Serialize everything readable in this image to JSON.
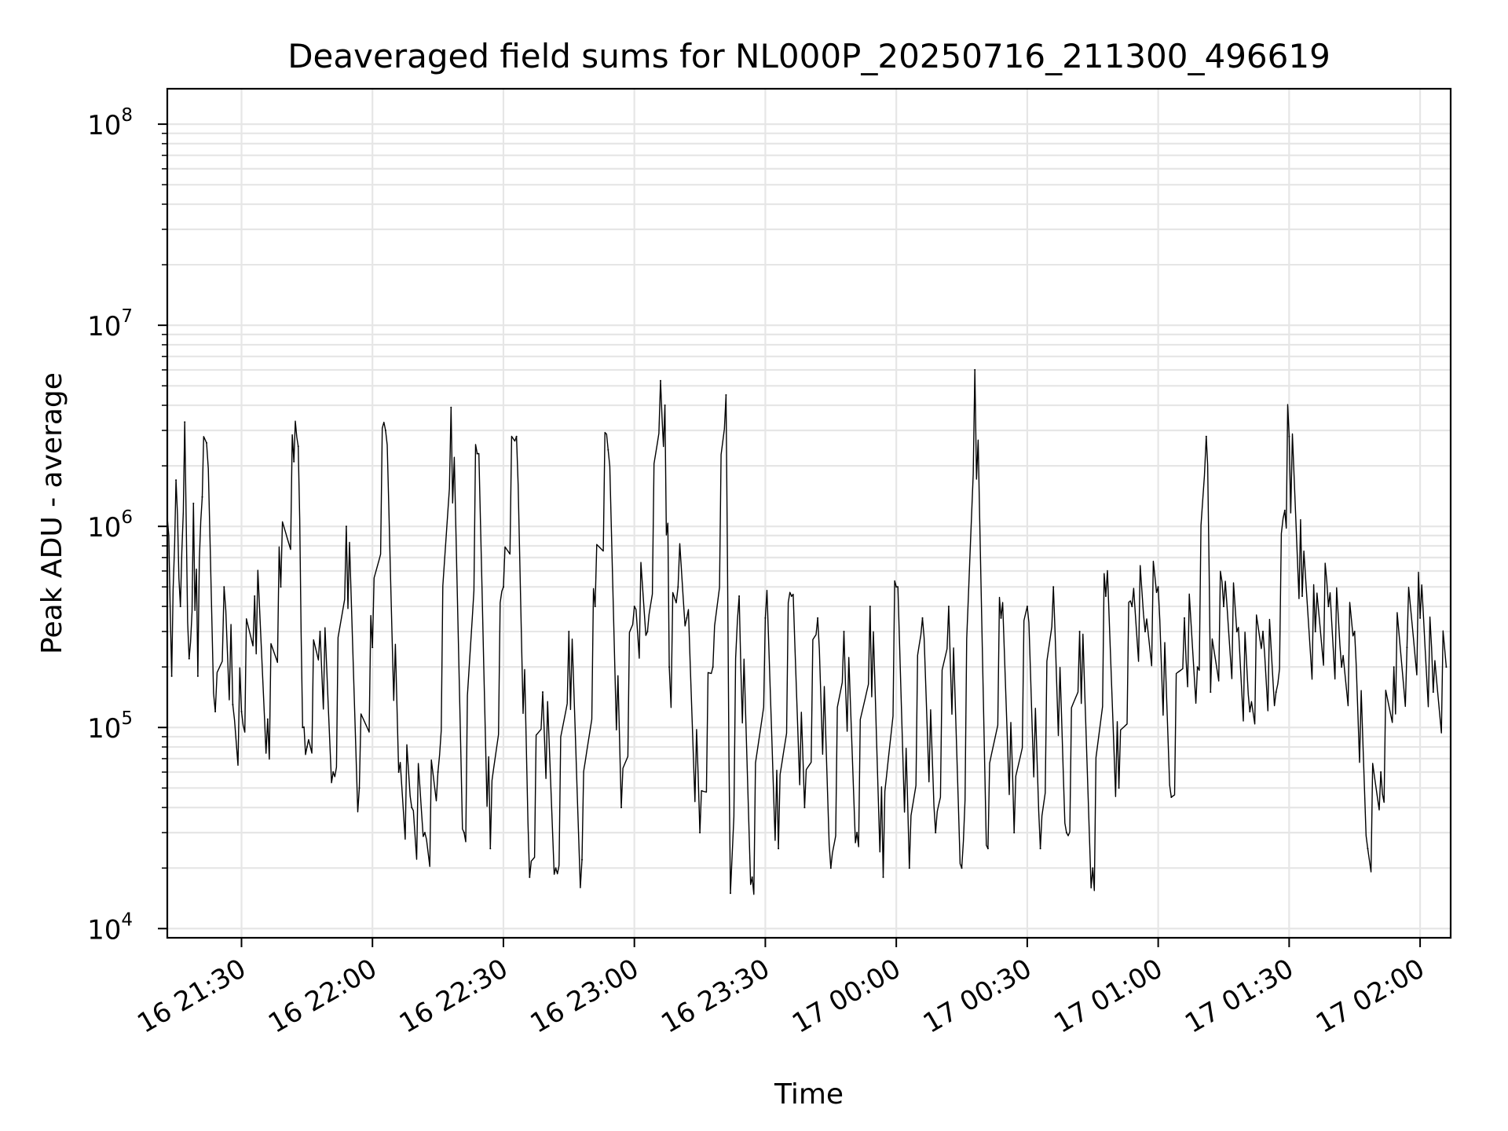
{
  "chart_data": {
    "type": "line",
    "title": "Deaveraged field sums for NL000P_20250716_211300_496619",
    "xlabel": "Time",
    "ylabel": "Peak ADU - average",
    "y_scale": "log",
    "ylim": [
      9000,
      150000000
    ],
    "xlim": [
      "2025-07-16 21:13",
      "2025-07-17 02:07"
    ],
    "grid": true,
    "line_color": "#000000",
    "x_ticks": [
      {
        "value": "2025-07-16 21:30",
        "label": "16 21:30"
      },
      {
        "value": "2025-07-16 22:00",
        "label": "16 22:00"
      },
      {
        "value": "2025-07-16 22:30",
        "label": "16 22:30"
      },
      {
        "value": "2025-07-16 23:00",
        "label": "16 23:00"
      },
      {
        "value": "2025-07-16 23:30",
        "label": "16 23:30"
      },
      {
        "value": "2025-07-17 00:00",
        "label": "17 00:00"
      },
      {
        "value": "2025-07-17 00:30",
        "label": "17 00:30"
      },
      {
        "value": "2025-07-17 01:00",
        "label": "17 01:00"
      },
      {
        "value": "2025-07-17 01:30",
        "label": "17 01:30"
      },
      {
        "value": "2025-07-17 02:00",
        "label": "17 02:00"
      }
    ],
    "y_ticks": [
      {
        "value": 10000,
        "base": "10",
        "exp": "4"
      },
      {
        "value": 100000,
        "base": "10",
        "exp": "5"
      },
      {
        "value": 1000000,
        "base": "10",
        "exp": "6"
      },
      {
        "value": 10000000,
        "base": "10",
        "exp": "7"
      },
      {
        "value": 100000000,
        "base": "10",
        "exp": "8"
      }
    ],
    "series": [
      {
        "x": [
          "2025-07-16 21:13",
          "2025-07-16 21:14",
          "2025-07-16 21:15",
          "2025-07-16 21:16",
          "2025-07-16 21:17",
          "2025-07-16 21:18",
          "2025-07-16 21:19",
          "2025-07-16 21:20",
          "2025-07-16 21:21",
          "2025-07-16 21:22",
          "2025-07-16 21:24",
          "2025-07-16 21:26",
          "2025-07-16 21:28",
          "2025-07-16 21:30",
          "2025-07-16 21:33",
          "2025-07-16 21:36",
          "2025-07-16 21:39",
          "2025-07-16 21:42",
          "2025-07-16 21:43",
          "2025-07-16 21:44",
          "2025-07-16 21:45",
          "2025-07-16 21:48",
          "2025-07-16 21:51",
          "2025-07-16 21:54",
          "2025-07-16 21:57",
          "2025-07-16 22:00",
          "2025-07-16 22:03",
          "2025-07-16 22:06",
          "2025-07-16 22:09",
          "2025-07-16 22:12",
          "2025-07-16 22:15",
          "2025-07-16 22:18",
          "2025-07-16 22:21",
          "2025-07-16 22:24",
          "2025-07-16 22:27",
          "2025-07-16 22:30",
          "2025-07-16 22:33",
          "2025-07-16 22:36",
          "2025-07-16 22:39",
          "2025-07-16 22:42",
          "2025-07-16 22:45",
          "2025-07-16 22:48",
          "2025-07-16 22:51",
          "2025-07-16 22:54",
          "2025-07-16 22:57",
          "2025-07-16 23:00",
          "2025-07-16 23:03",
          "2025-07-16 23:06",
          "2025-07-16 23:07",
          "2025-07-16 23:08",
          "2025-07-16 23:10",
          "2025-07-16 23:12",
          "2025-07-16 23:15",
          "2025-07-16 23:18",
          "2025-07-16 23:21",
          "2025-07-16 23:22",
          "2025-07-16 23:24",
          "2025-07-16 23:27",
          "2025-07-16 23:30",
          "2025-07-16 23:33",
          "2025-07-16 23:36",
          "2025-07-16 23:39",
          "2025-07-16 23:42",
          "2025-07-16 23:45",
          "2025-07-16 23:48",
          "2025-07-16 23:51",
          "2025-07-16 23:54",
          "2025-07-16 23:57",
          "2025-07-17 00:00",
          "2025-07-17 00:03",
          "2025-07-17 00:06",
          "2025-07-17 00:09",
          "2025-07-17 00:12",
          "2025-07-17 00:15",
          "2025-07-17 00:18",
          "2025-07-17 00:21",
          "2025-07-17 00:24",
          "2025-07-17 00:27",
          "2025-07-17 00:30",
          "2025-07-17 00:33",
          "2025-07-17 00:36",
          "2025-07-17 00:39",
          "2025-07-17 00:42",
          "2025-07-17 00:45",
          "2025-07-17 00:48",
          "2025-07-17 00:51",
          "2025-07-17 00:54",
          "2025-07-17 00:57",
          "2025-07-17 01:00",
          "2025-07-17 01:03",
          "2025-07-17 01:06",
          "2025-07-17 01:09",
          "2025-07-17 01:11",
          "2025-07-17 01:12",
          "2025-07-17 01:15",
          "2025-07-17 01:18",
          "2025-07-17 01:21",
          "2025-07-17 01:24",
          "2025-07-17 01:27",
          "2025-07-17 01:29",
          "2025-07-17 01:30",
          "2025-07-17 01:33",
          "2025-07-17 01:36",
          "2025-07-17 01:39",
          "2025-07-17 01:42",
          "2025-07-17 01:45",
          "2025-07-17 01:48",
          "2025-07-17 01:51",
          "2025-07-17 01:54",
          "2025-07-17 01:57",
          "2025-07-17 02:00",
          "2025-07-17 02:03",
          "2025-07-17 02:06"
        ],
        "y": [
          1100000,
          180000,
          1700000,
          400000,
          3300000,
          220000,
          1300000,
          180000,
          1400000,
          2600000,
          120000,
          500000,
          130000,
          120000,
          450000,
          110000,
          500000,
          2100000,
          2500000,
          100000,
          80000,
          300000,
          60000,
          1000000,
          50000,
          250000,
          3000000,
          60000,
          40000,
          30000,
          60000,
          3900000,
          30000,
          2300000,
          25000,
          500000,
          2800000,
          18000,
          150000,
          20000,
          300000,
          22000,
          400000,
          2400000,
          40000,
          400000,
          300000,
          5300000,
          4000000,
          200000,
          500000,
          350000,
          30000,
          200000,
          4500000,
          15000,
          450000,
          18000,
          350000,
          25000,
          450000,
          40000,
          350000,
          20000,
          300000,
          30000,
          400000,
          18000,
          500000,
          20000,
          350000,
          30000,
          400000,
          20000,
          6000000,
          25000,
          350000,
          30000,
          400000,
          25000,
          500000,
          30000,
          300000,
          20000,
          450000,
          50000,
          400000,
          300000,
          500000,
          45000,
          350000,
          200000,
          2800000,
          150000,
          400000,
          300000,
          120000,
          300000,
          150000,
          1200000,
          2800000,
          450000,
          300000,
          400000,
          200000,
          300000,
          25000,
          60000,
          200000,
          250000,
          350000,
          150000,
          200000
        ]
      }
    ]
  }
}
